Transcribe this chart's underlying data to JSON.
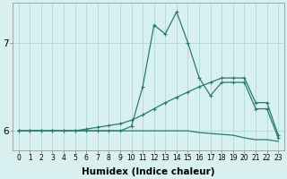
{
  "xlabel": "Humidex (Indice chaleur)",
  "x_values": [
    0,
    1,
    2,
    3,
    4,
    5,
    6,
    7,
    8,
    9,
    10,
    11,
    12,
    13,
    14,
    15,
    16,
    17,
    18,
    19,
    20,
    21,
    22,
    23
  ],
  "line1": [
    6.0,
    6.0,
    6.0,
    6.0,
    6.0,
    6.0,
    6.0,
    6.0,
    6.0,
    6.0,
    6.05,
    6.5,
    7.2,
    7.1,
    7.35,
    7.0,
    6.6,
    6.4,
    6.55,
    6.55,
    6.55,
    6.25,
    6.25,
    5.92
  ],
  "line2": [
    6.0,
    6.0,
    6.0,
    6.0,
    6.0,
    6.0,
    6.02,
    6.04,
    6.06,
    6.08,
    6.12,
    6.18,
    6.25,
    6.32,
    6.38,
    6.44,
    6.5,
    6.55,
    6.6,
    6.6,
    6.6,
    6.32,
    6.32,
    5.95
  ],
  "line3": [
    6.0,
    6.0,
    6.0,
    6.0,
    6.0,
    6.0,
    6.0,
    6.0,
    6.0,
    6.0,
    6.0,
    6.0,
    6.0,
    6.0,
    6.0,
    6.0,
    5.98,
    5.97,
    5.96,
    5.95,
    5.92,
    5.9,
    5.9,
    5.88
  ],
  "line_color": "#2a7a6a",
  "bg_color": "#d8f0f0",
  "grid_color": "#aad4d4",
  "ylim_min": 5.78,
  "ylim_max": 7.45,
  "yticks": [
    6,
    7
  ],
  "xtick_fontsize": 5.5,
  "ytick_fontsize": 7.5,
  "xlabel_fontsize": 7.5,
  "marker": "+"
}
